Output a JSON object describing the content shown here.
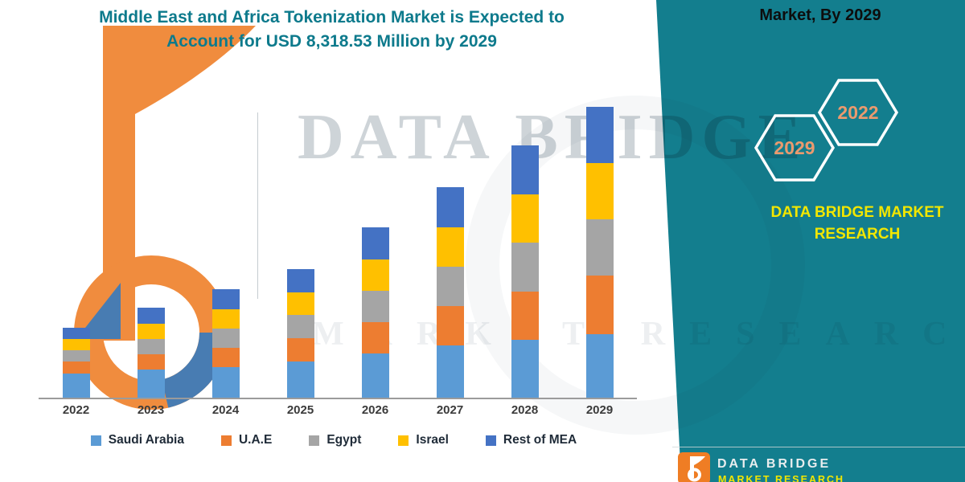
{
  "title": {
    "line1": "Middle East and Africa Tokenization Market is Expected to",
    "line2": "Account for USD 8,318.53 Million by 2029"
  },
  "side_panel": {
    "heading": "Market, By 2029",
    "hexagons": [
      "2029",
      "2022"
    ],
    "brand_text": "DATA BRIDGE MARKET RESEARCH"
  },
  "watermark": {
    "line1": "DATA BRIDGE",
    "line2": "MARKET RESEARCH"
  },
  "footer": {
    "brand_name": "DATA BRIDGE",
    "brand_tagline": "MARKET RESEARCH"
  },
  "colors": {
    "teal_panel": "#137e8e",
    "title_text": "#0d7a8c",
    "brand_yellow": "#f2e600",
    "hexagon_number": "#eb9a6e",
    "logo_orange": "#ef7d24",
    "logo_blue": "#2f6ba8",
    "axis_label": "#3b3b3b"
  },
  "chart_data": {
    "type": "bar",
    "stacked": true,
    "title": "Middle East and Africa Tokenization Market is Expected to Account for USD 8,318.53 Million by 2029",
    "unit": "USD Million",
    "categories": [
      "2022",
      "2023",
      "2024",
      "2025",
      "2026",
      "2027",
      "2028",
      "2029"
    ],
    "series": [
      {
        "name": "Saudi Arabia",
        "color": "#5B9BD5",
        "values": [
          690,
          805,
          875,
          1035,
          1265,
          1495,
          1655,
          1820
        ]
      },
      {
        "name": "U.A.E",
        "color": "#ED7D31",
        "values": [
          345,
          440,
          550,
          665,
          895,
          1125,
          1380,
          1680
        ]
      },
      {
        "name": "Egypt",
        "color": "#A5A5A5",
        "values": [
          322,
          437,
          552,
          667,
          897,
          1127,
          1403,
          1610
        ]
      },
      {
        "name": "Israel",
        "color": "#FFC000",
        "values": [
          322,
          437,
          552,
          644,
          897,
          1127,
          1380,
          1610
        ]
      },
      {
        "name": "Rest of MEA",
        "color": "#4472C4",
        "values": [
          322,
          460,
          575,
          667,
          920,
          1150,
          1403,
          1598.53
        ]
      }
    ],
    "totals": [
      2001,
      2579,
      3104,
      3678,
      4874,
      6024,
      7221,
      8318.53
    ],
    "ylim": [
      0,
      8700
    ],
    "gridlines": false,
    "legend_position": "bottom",
    "values_note": "Segment values estimated from bar heights; 2029 total anchored to USD 8,318.53 million stated in title."
  }
}
